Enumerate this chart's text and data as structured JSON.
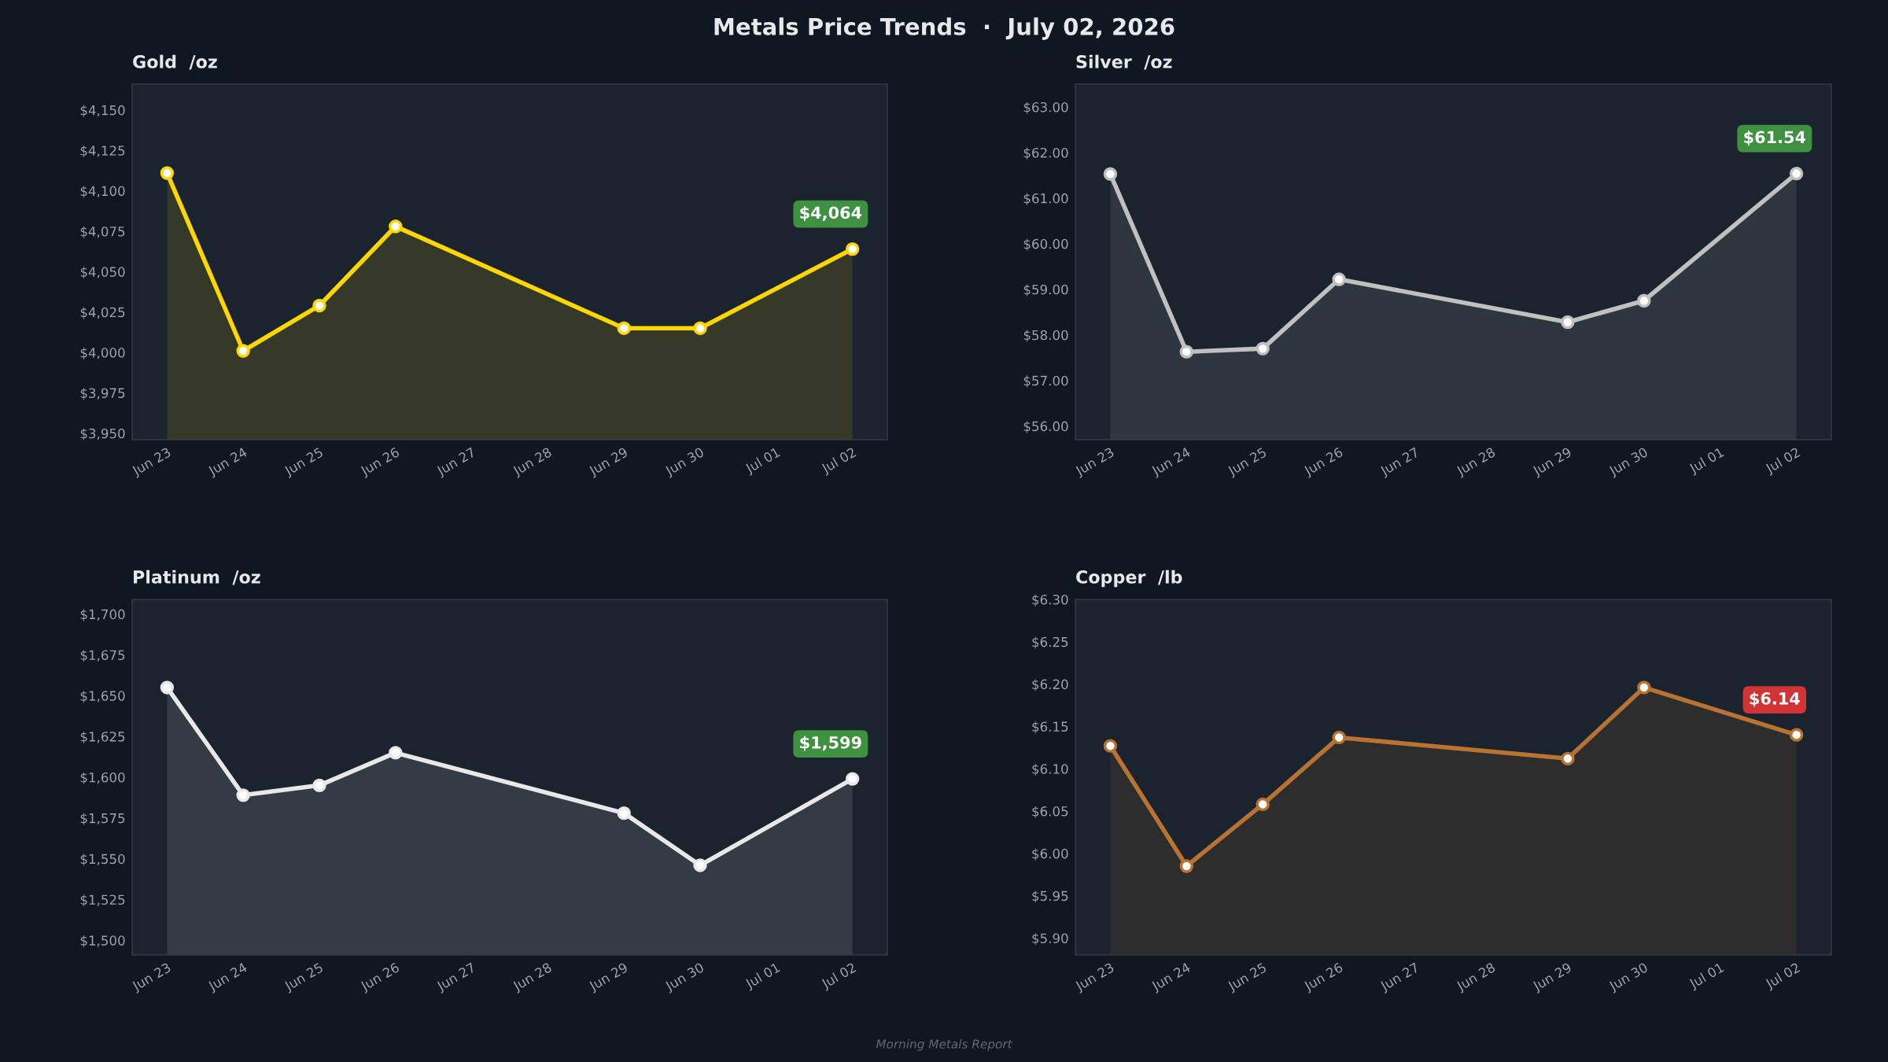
{
  "chart_data": [
    {
      "type": "other",
      "title": "Metals Price Trends  ·  July 02, 2026",
      "annotations": [
        "Morning Metals Report"
      ]
    },
    {
      "type": "area",
      "title": "Gold  /oz",
      "x": [
        "2026-06-23",
        "2026-06-24",
        "2026-06-25",
        "2026-06-26",
        "2026-06-29",
        "2026-06-30",
        "2026-07-02"
      ],
      "series": [
        {
          "color": "#ffd700",
          "values": [
            4111,
            4001,
            4029,
            4078,
            4015,
            4015,
            4064
          ],
          "value_labels": [
            null,
            null,
            null,
            null,
            null,
            null,
            "$4,064"
          ]
        }
      ],
      "ylim": [
        3946,
        4166
      ],
      "yticks": [
        {
          "value": 3950,
          "label": "$3,950"
        },
        {
          "value": 3975,
          "label": "$3,975"
        },
        {
          "value": 4000,
          "label": "$4,000"
        },
        {
          "value": 4025,
          "label": "$4,025"
        },
        {
          "value": 4050,
          "label": "$4,050"
        },
        {
          "value": 4075,
          "label": "$4,075"
        },
        {
          "value": 4100,
          "label": "$4,100"
        },
        {
          "value": 4125,
          "label": "$4,125"
        },
        {
          "value": 4150,
          "label": "$4,150"
        }
      ],
      "xlim": [
        "2026-06-22T13:00",
        "2026-07-02T11:00"
      ],
      "xticks": [
        {
          "value": "2026-06-23",
          "label": "Jun 23"
        },
        {
          "value": "2026-06-24",
          "label": "Jun 24"
        },
        {
          "value": "2026-06-25",
          "label": "Jun 25"
        },
        {
          "value": "2026-06-26",
          "label": "Jun 26"
        },
        {
          "value": "2026-06-27",
          "label": "Jun 27"
        },
        {
          "value": "2026-06-28",
          "label": "Jun 28"
        },
        {
          "value": "2026-06-29",
          "label": "Jun 29"
        },
        {
          "value": "2026-06-30",
          "label": "Jun 30"
        },
        {
          "value": "2026-07-01",
          "label": "Jul 01"
        },
        {
          "value": "2026-07-02",
          "label": "Jul 02"
        }
      ],
      "marker": "circle",
      "grid": false,
      "legend": false
    },
    {
      "type": "area",
      "title": "Silver  /oz",
      "x": [
        "2026-06-23",
        "2026-06-24",
        "2026-06-25",
        "2026-06-26",
        "2026-06-29",
        "2026-06-30",
        "2026-07-02"
      ],
      "series": [
        {
          "color": "#c0c0c0",
          "values": [
            61.53,
            57.63,
            57.7,
            59.22,
            58.28,
            58.75,
            61.54
          ],
          "value_labels": [
            null,
            null,
            null,
            null,
            null,
            null,
            "$61.54"
          ]
        }
      ],
      "ylim": [
        55.7,
        63.5
      ],
      "yticks": [
        {
          "value": 56,
          "label": "$56.00"
        },
        {
          "value": 57,
          "label": "$57.00"
        },
        {
          "value": 58,
          "label": "$58.00"
        },
        {
          "value": 59,
          "label": "$59.00"
        },
        {
          "value": 60,
          "label": "$60.00"
        },
        {
          "value": 61,
          "label": "$61.00"
        },
        {
          "value": 62,
          "label": "$62.00"
        },
        {
          "value": 63,
          "label": "$63.00"
        }
      ],
      "xlim": [
        "2026-06-22T13:00",
        "2026-07-02T11:00"
      ],
      "xticks": [
        {
          "value": "2026-06-23",
          "label": "Jun 23"
        },
        {
          "value": "2026-06-24",
          "label": "Jun 24"
        },
        {
          "value": "2026-06-25",
          "label": "Jun 25"
        },
        {
          "value": "2026-06-26",
          "label": "Jun 26"
        },
        {
          "value": "2026-06-27",
          "label": "Jun 27"
        },
        {
          "value": "2026-06-28",
          "label": "Jun 28"
        },
        {
          "value": "2026-06-29",
          "label": "Jun 29"
        },
        {
          "value": "2026-06-30",
          "label": "Jun 30"
        },
        {
          "value": "2026-07-01",
          "label": "Jul 01"
        },
        {
          "value": "2026-07-02",
          "label": "Jul 02"
        }
      ],
      "marker": "circle",
      "grid": false,
      "legend": false
    },
    {
      "type": "area",
      "title": "Platinum  /oz",
      "x": [
        "2026-06-23",
        "2026-06-24",
        "2026-06-25",
        "2026-06-26",
        "2026-06-29",
        "2026-06-30",
        "2026-07-02"
      ],
      "series": [
        {
          "color": "#e8e8e8",
          "values": [
            1655,
            1589,
            1595,
            1615,
            1578,
            1546,
            1599
          ],
          "value_labels": [
            null,
            null,
            null,
            null,
            null,
            null,
            "$1,599"
          ]
        }
      ],
      "ylim": [
        1491,
        1709
      ],
      "yticks": [
        {
          "value": 1500,
          "label": "$1,500"
        },
        {
          "value": 1525,
          "label": "$1,525"
        },
        {
          "value": 1550,
          "label": "$1,550"
        },
        {
          "value": 1575,
          "label": "$1,575"
        },
        {
          "value": 1600,
          "label": "$1,600"
        },
        {
          "value": 1625,
          "label": "$1,625"
        },
        {
          "value": 1650,
          "label": "$1,650"
        },
        {
          "value": 1675,
          "label": "$1,675"
        },
        {
          "value": 1700,
          "label": "$1,700"
        }
      ],
      "xlim": [
        "2026-06-22T13:00",
        "2026-07-02T11:00"
      ],
      "xticks": [
        {
          "value": "2026-06-23",
          "label": "Jun 23"
        },
        {
          "value": "2026-06-24",
          "label": "Jun 24"
        },
        {
          "value": "2026-06-25",
          "label": "Jun 25"
        },
        {
          "value": "2026-06-26",
          "label": "Jun 26"
        },
        {
          "value": "2026-06-27",
          "label": "Jun 27"
        },
        {
          "value": "2026-06-28",
          "label": "Jun 28"
        },
        {
          "value": "2026-06-29",
          "label": "Jun 29"
        },
        {
          "value": "2026-06-30",
          "label": "Jun 30"
        },
        {
          "value": "2026-07-01",
          "label": "Jul 01"
        },
        {
          "value": "2026-07-02",
          "label": "Jul 02"
        }
      ],
      "marker": "circle",
      "grid": false,
      "legend": false
    },
    {
      "type": "area",
      "title": "Copper  /lb",
      "x": [
        "2026-06-23",
        "2026-06-24",
        "2026-06-25",
        "2026-06-26",
        "2026-06-29",
        "2026-06-30",
        "2026-07-02"
      ],
      "series": [
        {
          "color": "#b87333",
          "values": [
            6.127,
            5.985,
            6.058,
            6.137,
            6.112,
            6.196,
            6.14
          ],
          "value_labels": [
            null,
            null,
            null,
            null,
            null,
            null,
            "$6.14"
          ]
        }
      ],
      "ylim": [
        5.88,
        6.3
      ],
      "yticks": [
        {
          "value": 5.9,
          "label": "$5.90"
        },
        {
          "value": 5.95,
          "label": "$5.95"
        },
        {
          "value": 6.0,
          "label": "$6.00"
        },
        {
          "value": 6.05,
          "label": "$6.05"
        },
        {
          "value": 6.1,
          "label": "$6.10"
        },
        {
          "value": 6.15,
          "label": "$6.15"
        },
        {
          "value": 6.2,
          "label": "$6.20"
        },
        {
          "value": 6.25,
          "label": "$6.25"
        },
        {
          "value": 6.3,
          "label": "$6.30"
        }
      ],
      "xlim": [
        "2026-06-22T13:00",
        "2026-07-02T11:00"
      ],
      "xticks": [
        {
          "value": "2026-06-23",
          "label": "Jun 23"
        },
        {
          "value": "2026-06-24",
          "label": "Jun 24"
        },
        {
          "value": "2026-06-25",
          "label": "Jun 25"
        },
        {
          "value": "2026-06-26",
          "label": "Jun 26"
        },
        {
          "value": "2026-06-27",
          "label": "Jun 27"
        },
        {
          "value": "2026-06-28",
          "label": "Jun 28"
        },
        {
          "value": "2026-06-29",
          "label": "Jun 29"
        },
        {
          "value": "2026-06-30",
          "label": "Jun 30"
        },
        {
          "value": "2026-07-01",
          "label": "Jul 01"
        },
        {
          "value": "2026-07-02",
          "label": "Jul 02"
        }
      ],
      "marker": "circle",
      "grid": false,
      "legend": false
    }
  ]
}
